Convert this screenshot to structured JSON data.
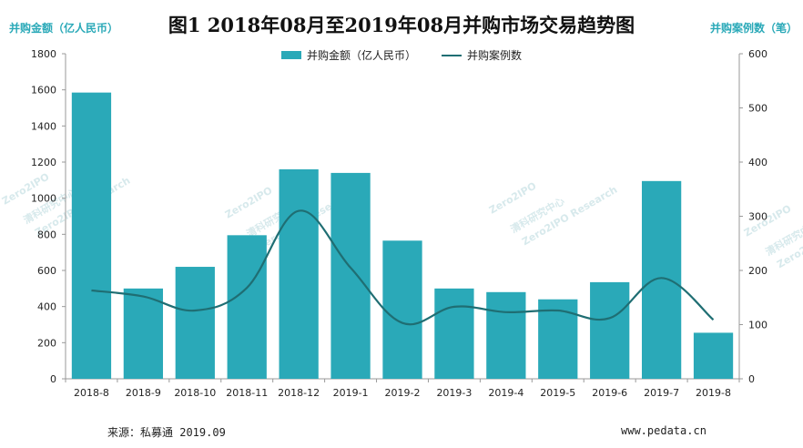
{
  "chart_data": {
    "type": "bar",
    "title": "图1  2018年08月至2019年08月并购市场交易趋势图",
    "ylabel_left": "并购金额（亿人民币）",
    "ylabel_right": "并购案例数（笔）",
    "categories": [
      "2018-8",
      "2018-9",
      "2018-10",
      "2018-11",
      "2018-12",
      "2019-1",
      "2019-2",
      "2019-3",
      "2019-4",
      "2019-5",
      "2019-6",
      "2019-7",
      "2019-8"
    ],
    "series": [
      {
        "name": "并购金额（亿人民币）",
        "type": "bar",
        "axis": "left",
        "color": "#2aa9b8",
        "values": [
          1585,
          500,
          620,
          795,
          1160,
          1140,
          765,
          500,
          480,
          440,
          535,
          1095,
          255
        ]
      },
      {
        "name": "并购案例数",
        "type": "line",
        "axis": "right",
        "color": "#1f6e73",
        "values": [
          163,
          152,
          126,
          168,
          310,
          205,
          103,
          133,
          123,
          126,
          112,
          186,
          109
        ]
      }
    ],
    "ylim_left": [
      0,
      1800
    ],
    "ylim_right": [
      0,
      600
    ],
    "yticks_left": [
      0,
      200,
      400,
      600,
      800,
      1000,
      1200,
      1400,
      1600,
      1800
    ],
    "yticks_right": [
      0,
      100,
      200,
      300,
      400,
      500,
      600
    ],
    "grid": false,
    "legend": "top-center"
  },
  "footer": {
    "source": "来源：私募通 2019.09",
    "url": "www.pedata.cn"
  },
  "watermark": {
    "name": "清科研究中心",
    "sub": "Zero2IPO Research",
    "logo": "Zero2IPO"
  }
}
